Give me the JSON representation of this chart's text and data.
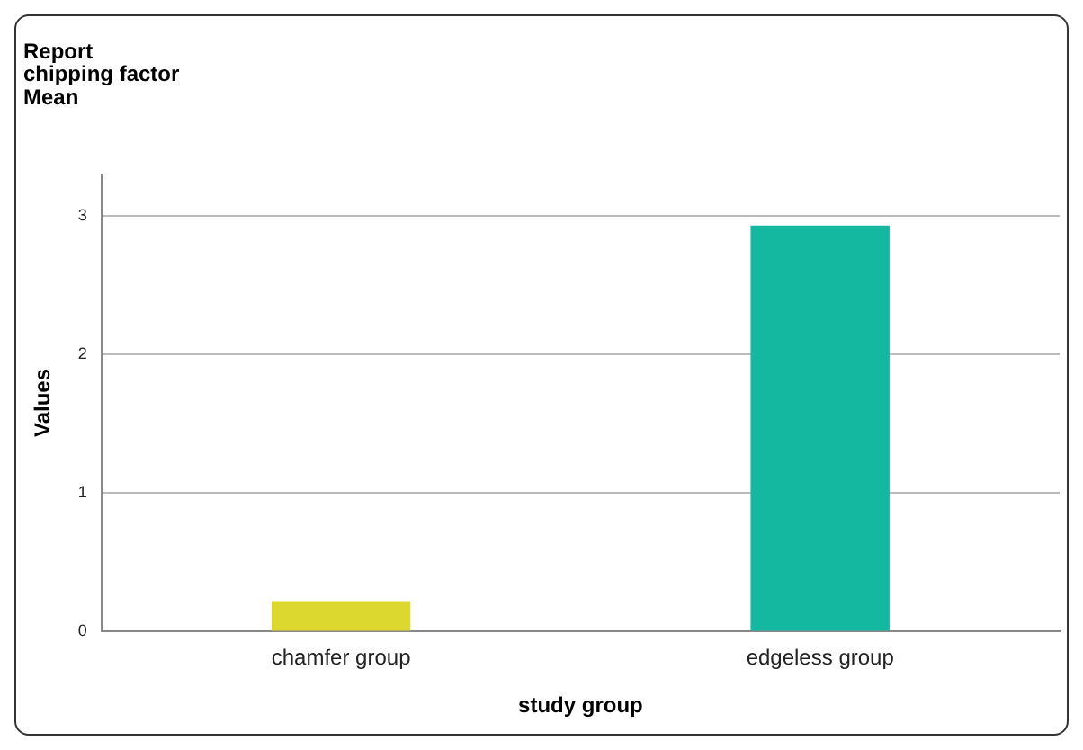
{
  "chart_data": {
    "type": "bar",
    "title": "Report\nchipping factor\nMean",
    "xlabel": "study group",
    "ylabel": "Values",
    "categories": [
      "chamfer group",
      "edgeless group"
    ],
    "values": [
      0.22,
      2.93
    ],
    "colors": [
      "#dcd82f",
      "#14b8a0"
    ],
    "ylim": [
      0,
      3.3
    ],
    "yticks": [
      0,
      1,
      2,
      3
    ],
    "grid": "y",
    "legend": false
  }
}
